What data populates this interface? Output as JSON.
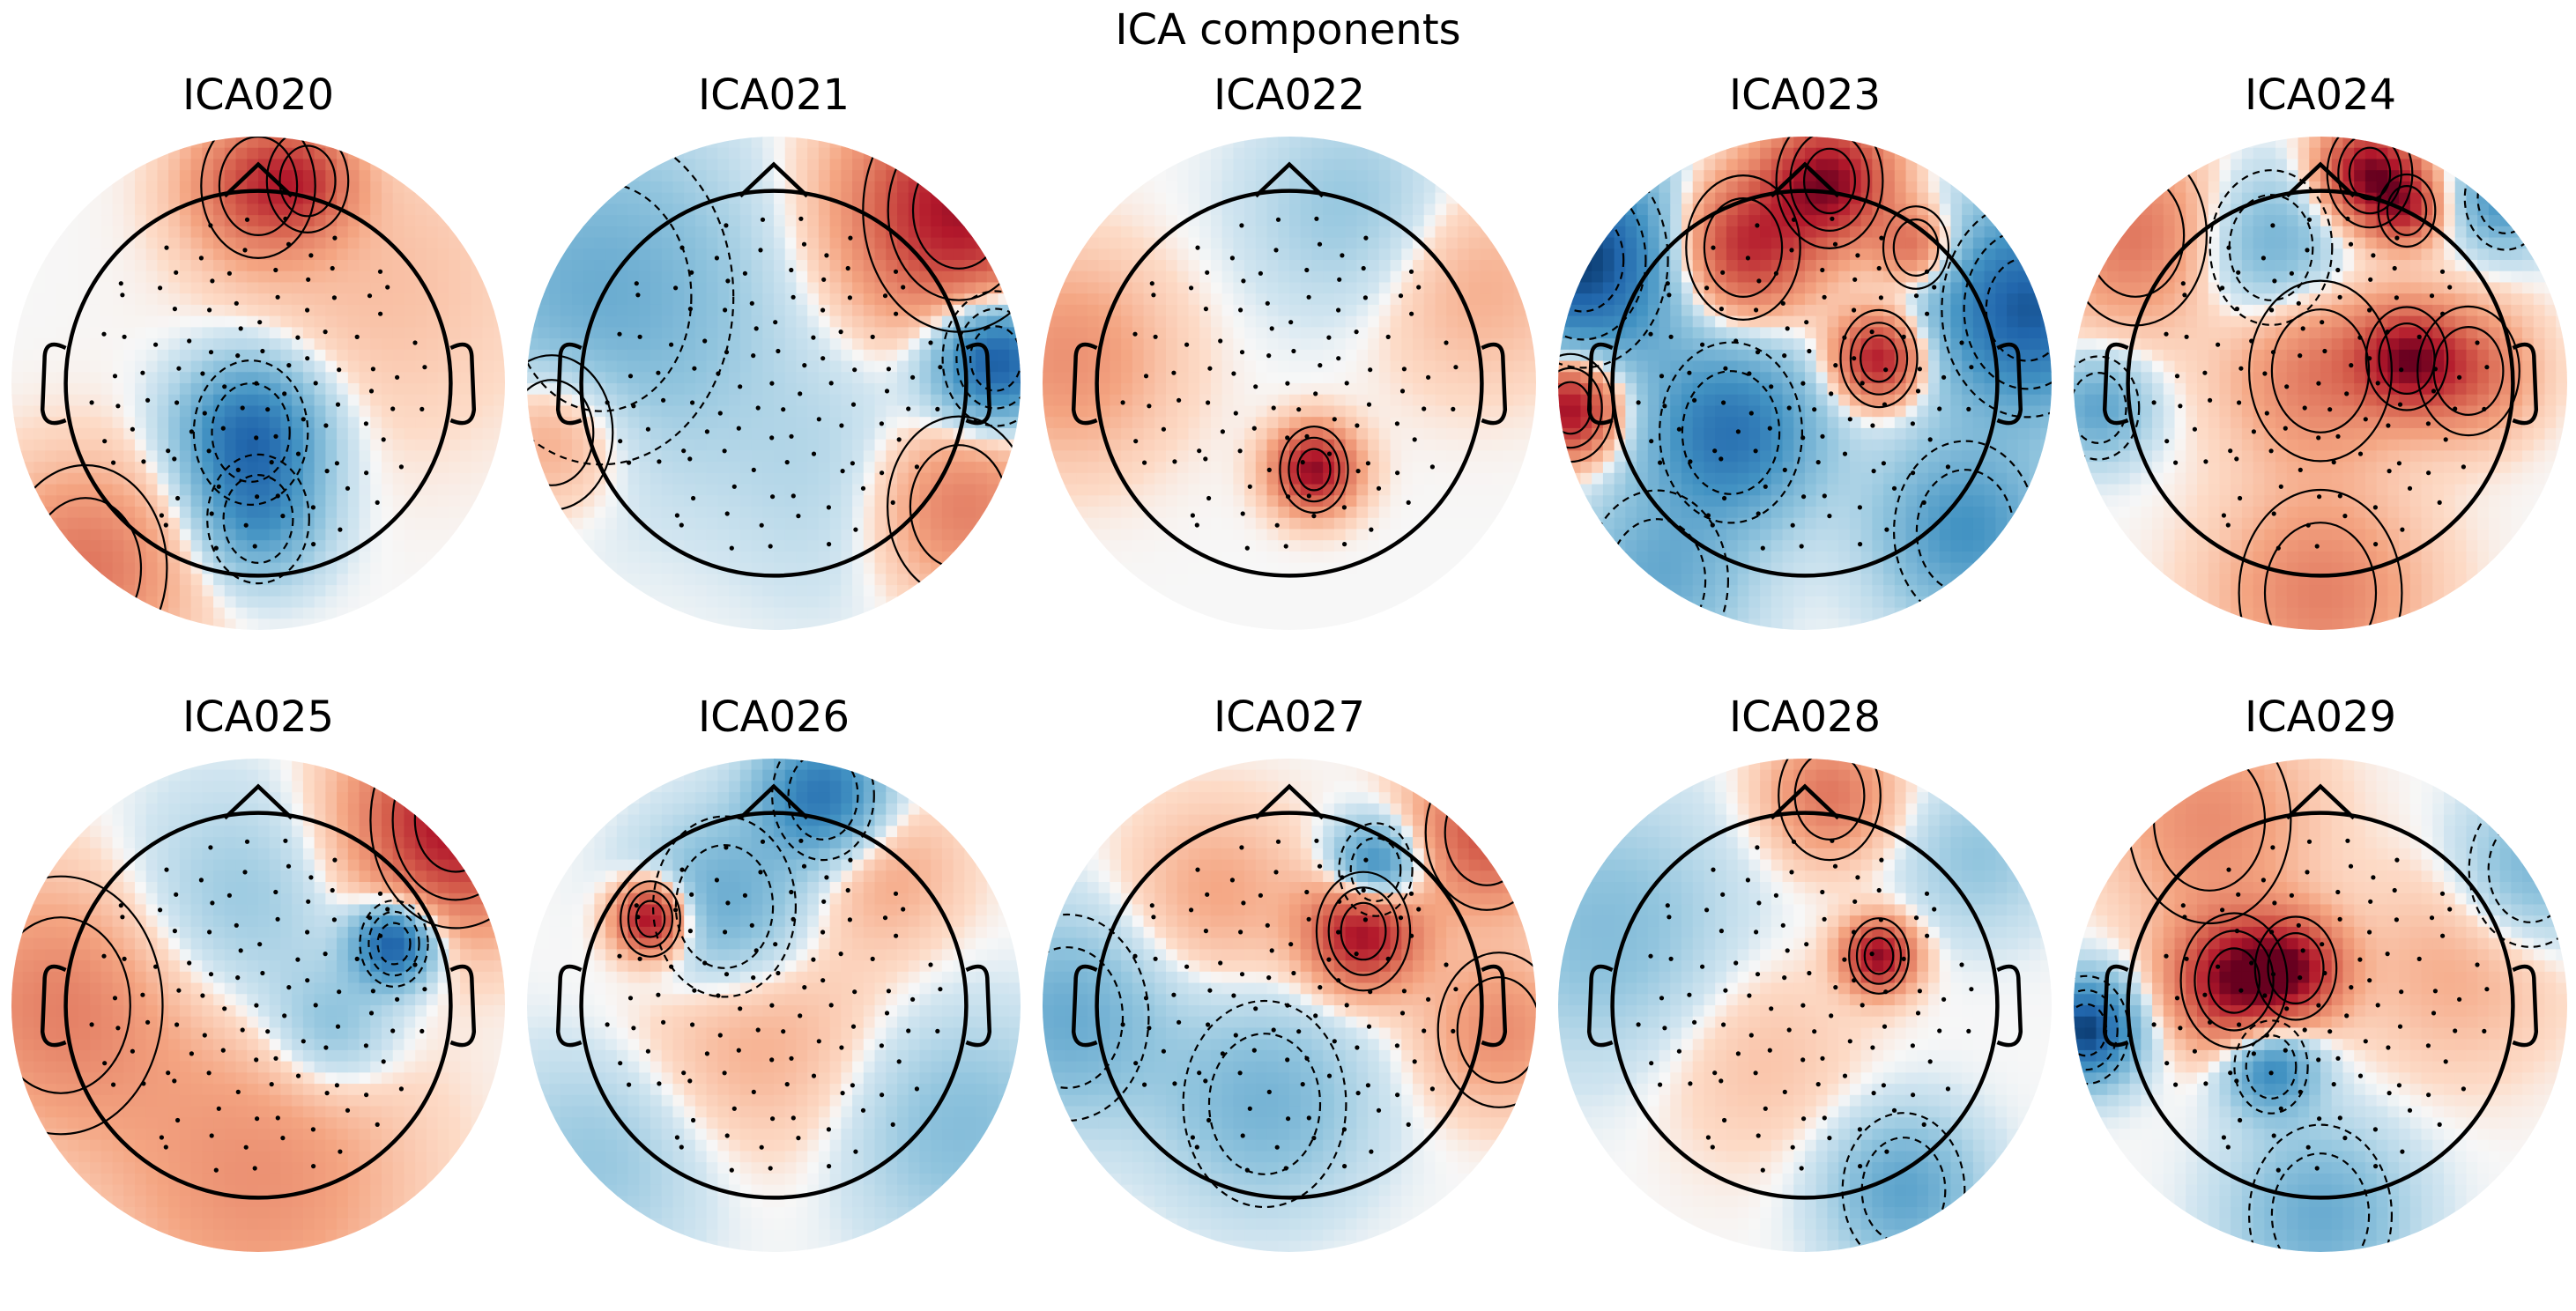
{
  "figure": {
    "title": "ICA components"
  },
  "colors": {
    "colormap": "RdBu_r",
    "positive": "#67001f",
    "negative": "#053061",
    "neutral": "#f7f7f7",
    "outline": "#000000"
  },
  "chart_data": {
    "type": "heatmap",
    "title": "ICA components",
    "colormap": "RdBu_r",
    "grid": false,
    "legend": "none",
    "components": [
      {
        "label": "ICA020",
        "blobs": [
          {
            "x": -0.03,
            "y": -0.2,
            "r": 0.28,
            "v": -0.75
          },
          {
            "x": 0.0,
            "y": -0.55,
            "r": 0.25,
            "v": -0.45
          },
          {
            "x": 0.0,
            "y": 0.8,
            "r": 0.28,
            "v": 0.55
          },
          {
            "x": 0.2,
            "y": 0.82,
            "r": 0.2,
            "v": 0.35
          },
          {
            "x": -0.7,
            "y": -0.75,
            "r": 0.4,
            "v": 0.4
          },
          {
            "x": 0.5,
            "y": 0.4,
            "r": 0.6,
            "v": 0.12
          }
        ]
      },
      {
        "label": "ICA021",
        "blobs": [
          {
            "x": 0.75,
            "y": 0.7,
            "r": 0.45,
            "v": 0.85
          },
          {
            "x": 0.9,
            "y": 0.1,
            "r": 0.25,
            "v": -0.95
          },
          {
            "x": -0.7,
            "y": 0.35,
            "r": 0.65,
            "v": -0.35
          },
          {
            "x": -0.9,
            "y": -0.2,
            "r": 0.3,
            "v": 0.3
          },
          {
            "x": 0.75,
            "y": -0.5,
            "r": 0.35,
            "v": 0.4
          },
          {
            "x": 0.3,
            "y": -0.4,
            "r": 0.5,
            "v": -0.12
          }
        ]
      },
      {
        "label": "ICA022",
        "blobs": [
          {
            "x": 0.1,
            "y": -0.35,
            "r": 0.16,
            "v": 0.9
          },
          {
            "x": -0.9,
            "y": 0.1,
            "r": 0.4,
            "v": 0.28
          },
          {
            "x": 0.25,
            "y": 0.7,
            "r": 0.4,
            "v": -0.2
          },
          {
            "x": 0.75,
            "y": 0.4,
            "r": 0.4,
            "v": 0.18
          }
        ]
      },
      {
        "label": "ICA023",
        "blobs": [
          {
            "x": 0.1,
            "y": 0.82,
            "r": 0.25,
            "v": 0.9
          },
          {
            "x": -0.25,
            "y": 0.55,
            "r": 0.28,
            "v": 0.75
          },
          {
            "x": 0.3,
            "y": 0.1,
            "r": 0.18,
            "v": 0.85
          },
          {
            "x": 0.45,
            "y": 0.55,
            "r": 0.16,
            "v": 0.5
          },
          {
            "x": -0.95,
            "y": -0.1,
            "r": 0.2,
            "v": 0.95
          },
          {
            "x": -0.9,
            "y": 0.5,
            "r": 0.4,
            "v": -0.95
          },
          {
            "x": 0.9,
            "y": 0.3,
            "r": 0.4,
            "v": -0.85
          },
          {
            "x": -0.3,
            "y": -0.2,
            "r": 0.35,
            "v": -0.7
          },
          {
            "x": 0.65,
            "y": -0.6,
            "r": 0.35,
            "v": -0.5
          },
          {
            "x": -0.6,
            "y": -0.8,
            "r": 0.35,
            "v": -0.35
          }
        ]
      },
      {
        "label": "ICA024",
        "blobs": [
          {
            "x": 0.2,
            "y": 0.85,
            "r": 0.2,
            "v": 0.95
          },
          {
            "x": 0.35,
            "y": 0.7,
            "r": 0.14,
            "v": 0.55
          },
          {
            "x": 0.0,
            "y": 0.05,
            "r": 0.35,
            "v": 0.4
          },
          {
            "x": 0.35,
            "y": 0.1,
            "r": 0.2,
            "v": 0.7
          },
          {
            "x": -0.75,
            "y": 0.6,
            "r": 0.35,
            "v": 0.4
          },
          {
            "x": 0.6,
            "y": 0.05,
            "r": 0.25,
            "v": 0.45
          },
          {
            "x": -0.9,
            "y": -0.1,
            "r": 0.2,
            "v": -0.4
          },
          {
            "x": -0.2,
            "y": 0.55,
            "r": 0.3,
            "v": -0.35
          },
          {
            "x": 0.75,
            "y": 0.75,
            "r": 0.2,
            "v": -0.5
          },
          {
            "x": 0.0,
            "y": -0.85,
            "r": 0.4,
            "v": 0.35
          }
        ]
      },
      {
        "label": "ICA025",
        "blobs": [
          {
            "x": 0.55,
            "y": 0.25,
            "r": 0.16,
            "v": -0.9
          },
          {
            "x": 0.8,
            "y": 0.75,
            "r": 0.4,
            "v": 0.85
          },
          {
            "x": -0.8,
            "y": 0.0,
            "r": 0.5,
            "v": 0.35
          },
          {
            "x": 0.0,
            "y": -0.7,
            "r": 0.6,
            "v": 0.28
          },
          {
            "x": -0.1,
            "y": 0.4,
            "r": 0.45,
            "v": -0.2
          },
          {
            "x": 0.3,
            "y": -0.1,
            "r": 0.25,
            "v": -0.25
          }
        ]
      },
      {
        "label": "ICA026",
        "blobs": [
          {
            "x": -0.5,
            "y": 0.35,
            "r": 0.14,
            "v": 0.95
          },
          {
            "x": 0.2,
            "y": 0.85,
            "r": 0.25,
            "v": -0.7
          },
          {
            "x": -0.2,
            "y": 0.4,
            "r": 0.35,
            "v": -0.4
          },
          {
            "x": 0.45,
            "y": 0.55,
            "r": 0.3,
            "v": 0.2
          },
          {
            "x": -0.1,
            "y": -0.1,
            "r": 0.5,
            "v": 0.2
          },
          {
            "x": 0.75,
            "y": -0.5,
            "r": 0.45,
            "v": -0.25
          },
          {
            "x": -0.7,
            "y": -0.6,
            "r": 0.45,
            "v": -0.2
          }
        ]
      },
      {
        "label": "ICA027",
        "blobs": [
          {
            "x": 0.3,
            "y": 0.3,
            "r": 0.22,
            "v": 0.9
          },
          {
            "x": 0.35,
            "y": 0.55,
            "r": 0.18,
            "v": -0.7
          },
          {
            "x": 0.8,
            "y": 0.7,
            "r": 0.3,
            "v": 0.55
          },
          {
            "x": -0.9,
            "y": -0.05,
            "r": 0.4,
            "v": -0.35
          },
          {
            "x": -0.1,
            "y": -0.4,
            "r": 0.4,
            "v": -0.3
          },
          {
            "x": 0.85,
            "y": -0.1,
            "r": 0.3,
            "v": 0.3
          },
          {
            "x": -0.3,
            "y": 0.45,
            "r": 0.35,
            "v": 0.2
          }
        ]
      },
      {
        "label": "ICA028",
        "blobs": [
          {
            "x": 0.3,
            "y": 0.2,
            "r": 0.14,
            "v": 0.9
          },
          {
            "x": 0.1,
            "y": 0.85,
            "r": 0.25,
            "v": 0.4
          },
          {
            "x": -0.8,
            "y": 0.3,
            "r": 0.5,
            "v": -0.25
          },
          {
            "x": 0.4,
            "y": -0.75,
            "r": 0.3,
            "v": -0.4
          },
          {
            "x": 0.7,
            "y": 0.6,
            "r": 0.3,
            "v": -0.2
          },
          {
            "x": -0.2,
            "y": -0.2,
            "r": 0.4,
            "v": 0.12
          }
        ]
      },
      {
        "label": "ICA029",
        "blobs": [
          {
            "x": -0.35,
            "y": 0.1,
            "r": 0.25,
            "v": 0.9
          },
          {
            "x": -0.1,
            "y": 0.15,
            "r": 0.2,
            "v": 0.7
          },
          {
            "x": -0.95,
            "y": -0.1,
            "r": 0.2,
            "v": -0.95
          },
          {
            "x": -0.2,
            "y": -0.25,
            "r": 0.18,
            "v": -0.6
          },
          {
            "x": 0.0,
            "y": -0.85,
            "r": 0.35,
            "v": -0.35
          },
          {
            "x": 0.85,
            "y": 0.55,
            "r": 0.3,
            "v": -0.3
          },
          {
            "x": -0.45,
            "y": 0.75,
            "r": 0.4,
            "v": 0.3
          },
          {
            "x": 0.55,
            "y": 0.15,
            "r": 0.4,
            "v": 0.18
          }
        ]
      }
    ]
  }
}
